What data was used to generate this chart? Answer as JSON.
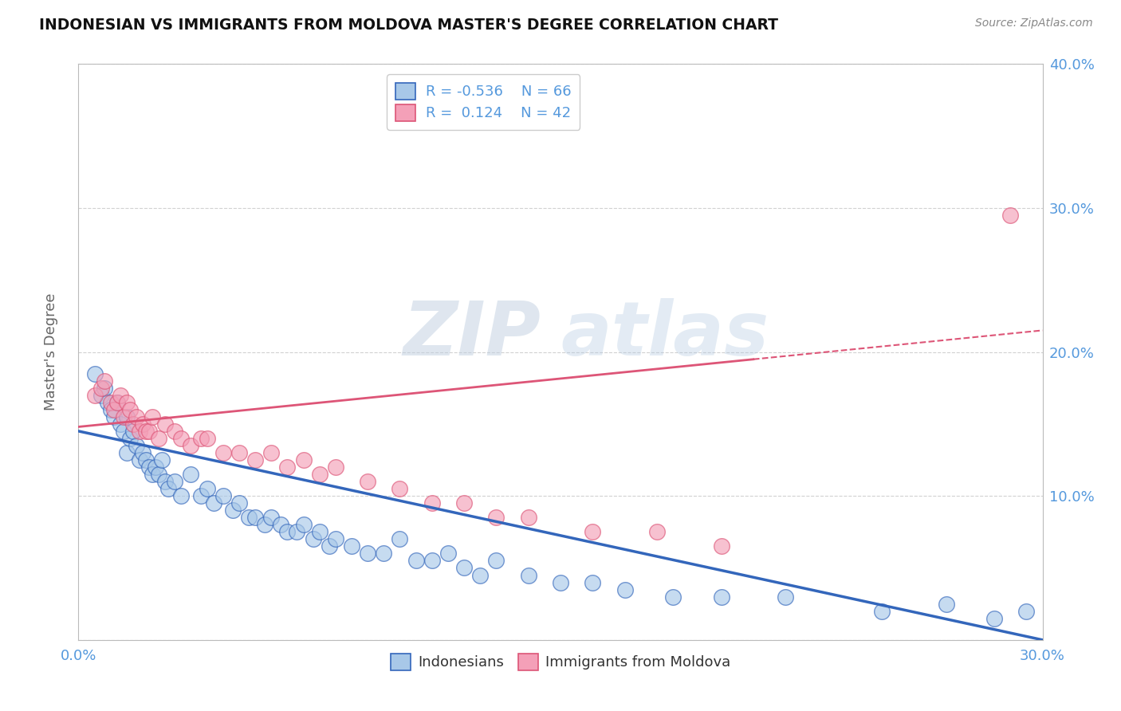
{
  "title": "INDONESIAN VS IMMIGRANTS FROM MOLDOVA MASTER'S DEGREE CORRELATION CHART",
  "source": "Source: ZipAtlas.com",
  "ylabel_label": "Master's Degree",
  "xlim": [
    0.0,
    0.3
  ],
  "ylim": [
    0.0,
    0.4
  ],
  "xticks": [
    0.0,
    0.05,
    0.1,
    0.15,
    0.2,
    0.25,
    0.3
  ],
  "yticks": [
    0.0,
    0.1,
    0.2,
    0.3,
    0.4
  ],
  "color_indonesian": "#a8c8e8",
  "color_moldova": "#f4a0b8",
  "color_line_indonesian": "#3366bb",
  "color_line_moldova": "#dd5577",
  "watermark_zip": "ZIP",
  "watermark_atlas": "atlas",
  "bg_color": "#ffffff",
  "grid_color": "#cccccc",
  "title_color": "#111111",
  "tick_color": "#5599dd",
  "indonesian_x": [
    0.005,
    0.007,
    0.008,
    0.009,
    0.01,
    0.011,
    0.012,
    0.013,
    0.014,
    0.015,
    0.015,
    0.016,
    0.017,
    0.018,
    0.019,
    0.02,
    0.021,
    0.022,
    0.023,
    0.024,
    0.025,
    0.026,
    0.027,
    0.028,
    0.03,
    0.032,
    0.035,
    0.038,
    0.04,
    0.042,
    0.045,
    0.048,
    0.05,
    0.053,
    0.055,
    0.058,
    0.06,
    0.063,
    0.065,
    0.068,
    0.07,
    0.073,
    0.075,
    0.078,
    0.08,
    0.085,
    0.09,
    0.095,
    0.1,
    0.105,
    0.11,
    0.115,
    0.12,
    0.125,
    0.13,
    0.14,
    0.15,
    0.16,
    0.17,
    0.185,
    0.2,
    0.22,
    0.25,
    0.27,
    0.285,
    0.295
  ],
  "indonesian_y": [
    0.185,
    0.17,
    0.175,
    0.165,
    0.16,
    0.155,
    0.165,
    0.15,
    0.145,
    0.155,
    0.13,
    0.14,
    0.145,
    0.135,
    0.125,
    0.13,
    0.125,
    0.12,
    0.115,
    0.12,
    0.115,
    0.125,
    0.11,
    0.105,
    0.11,
    0.1,
    0.115,
    0.1,
    0.105,
    0.095,
    0.1,
    0.09,
    0.095,
    0.085,
    0.085,
    0.08,
    0.085,
    0.08,
    0.075,
    0.075,
    0.08,
    0.07,
    0.075,
    0.065,
    0.07,
    0.065,
    0.06,
    0.06,
    0.07,
    0.055,
    0.055,
    0.06,
    0.05,
    0.045,
    0.055,
    0.045,
    0.04,
    0.04,
    0.035,
    0.03,
    0.03,
    0.03,
    0.02,
    0.025,
    0.015,
    0.02
  ],
  "moldova_x": [
    0.005,
    0.007,
    0.008,
    0.01,
    0.011,
    0.012,
    0.013,
    0.014,
    0.015,
    0.016,
    0.017,
    0.018,
    0.019,
    0.02,
    0.021,
    0.022,
    0.023,
    0.025,
    0.027,
    0.03,
    0.032,
    0.035,
    0.038,
    0.04,
    0.045,
    0.05,
    0.055,
    0.06,
    0.065,
    0.07,
    0.075,
    0.08,
    0.09,
    0.1,
    0.11,
    0.12,
    0.13,
    0.14,
    0.16,
    0.18,
    0.2,
    0.29
  ],
  "moldova_y": [
    0.17,
    0.175,
    0.18,
    0.165,
    0.16,
    0.165,
    0.17,
    0.155,
    0.165,
    0.16,
    0.15,
    0.155,
    0.145,
    0.15,
    0.145,
    0.145,
    0.155,
    0.14,
    0.15,
    0.145,
    0.14,
    0.135,
    0.14,
    0.14,
    0.13,
    0.13,
    0.125,
    0.13,
    0.12,
    0.125,
    0.115,
    0.12,
    0.11,
    0.105,
    0.095,
    0.095,
    0.085,
    0.085,
    0.075,
    0.075,
    0.065,
    0.295
  ],
  "ind_line_x0": 0.0,
  "ind_line_x1": 0.3,
  "ind_line_y0": 0.145,
  "ind_line_y1": 0.0,
  "mol_line_x0": 0.0,
  "mol_line_x1": 0.3,
  "mol_line_y0": 0.148,
  "mol_line_y1": 0.215
}
